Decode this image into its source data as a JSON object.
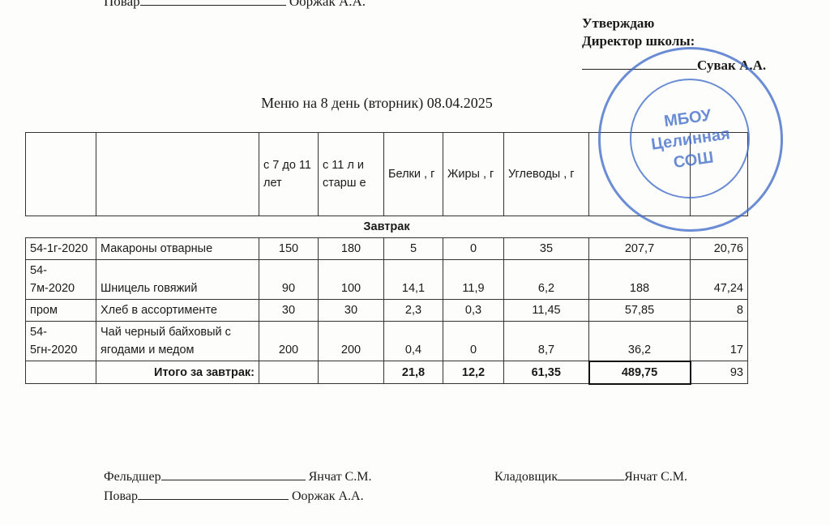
{
  "top_signature": {
    "role": "Повар",
    "name": "Ооржак А.А.",
    "signature": "Ооржак"
  },
  "approval": {
    "line1": "Утверждаю",
    "line2": "Директор школы:",
    "name": "Сувак А.А."
  },
  "title": "Меню на 8 день (вторник) 08.04.2025",
  "stamp": {
    "line1": "МБОУ",
    "line2": "Целинная",
    "line3": "СОШ"
  },
  "table": {
    "headers": [
      "",
      "",
      "с 7 до 11 лет",
      "с 11 л и старш е",
      "Белки , г",
      "Жиры , г",
      "Углеводы , г",
      "",
      ""
    ],
    "section": "Завтрак",
    "rows": [
      [
        "54-1г-2020",
        "Макароны отварные",
        "150",
        "180",
        "5",
        "0",
        "35",
        "207,7",
        "20,76"
      ],
      [
        "54-7м-2020",
        "Шницель говяжий",
        "90",
        "100",
        "14,1",
        "11,9",
        "6,2",
        "188",
        "47,24"
      ],
      [
        "пром",
        "Хлеб в ассортименте",
        "30",
        "30",
        "2,3",
        "0,3",
        "11,45",
        "57,85",
        "8"
      ],
      [
        "54-5гн-2020",
        "Чай черный байховый с ягодами и медом",
        "200",
        "200",
        "0,4",
        "0",
        "8,7",
        "36,2",
        "17"
      ]
    ],
    "total": {
      "label": "Итого за завтрак:",
      "values": [
        "",
        "",
        "21,8",
        "12,2",
        "61,35",
        "489,75",
        "93"
      ]
    }
  },
  "footer": {
    "medic_role": "Фельдшер",
    "medic_name": "Янчат С.М.",
    "storekeeper_role": "Кладовщик",
    "storekeeper_name": "Янчат С.М.",
    "cook_role": "Повар",
    "cook_name": "Ооржак А.А."
  }
}
